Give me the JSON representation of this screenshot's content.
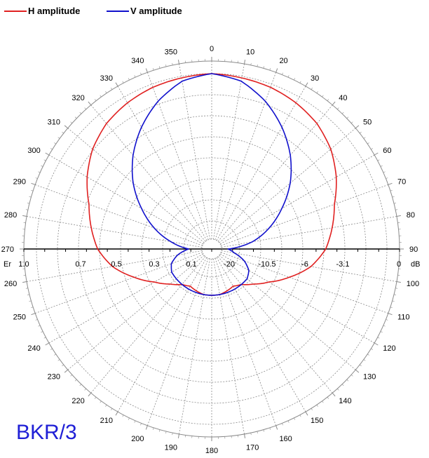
{
  "legend": {
    "h_label": "H amplitude",
    "v_label": "V amplitude"
  },
  "watermark": "BKR/3",
  "colors": {
    "h": "#e02020",
    "v": "#1010cc",
    "grid": "#8a8a8a",
    "axis": "#000000"
  },
  "chart_data": {
    "type": "line",
    "projection": "polar",
    "angular_unit": "degrees",
    "angle_ticks": [
      0,
      10,
      20,
      30,
      40,
      50,
      60,
      70,
      80,
      90,
      100,
      110,
      120,
      130,
      140,
      150,
      160,
      170,
      180,
      190,
      200,
      210,
      220,
      230,
      240,
      250,
      260,
      270,
      280,
      290,
      300,
      310,
      320,
      330,
      340,
      350
    ],
    "left_scale_label": "Er",
    "left_scale_ticks": [
      "1.0",
      "0.7",
      "0.5",
      "0.3",
      "0.1"
    ],
    "left_scale_values": [
      1.0,
      0.7,
      0.5,
      0.3,
      0.1
    ],
    "right_scale_label": "dB",
    "right_scale_ticks": [
      "-20",
      "-10.5",
      "-6",
      "-3.1",
      "0"
    ],
    "right_scale_values": [
      -20,
      -10.5,
      -6,
      -3.1,
      0
    ],
    "radial_range": [
      0,
      1
    ],
    "series": [
      {
        "name": "H amplitude",
        "angles": [
          0,
          10,
          20,
          30,
          40,
          50,
          60,
          70,
          80,
          90,
          100,
          110,
          120,
          130,
          140,
          150,
          160,
          170,
          180,
          190,
          200,
          210,
          220,
          230,
          240,
          250,
          260,
          270,
          280,
          290,
          300,
          310,
          320,
          330,
          340,
          350
        ],
        "values": [
          1.0,
          0.99,
          0.98,
          0.96,
          0.93,
          0.88,
          0.81,
          0.73,
          0.68,
          0.63,
          0.55,
          0.44,
          0.34,
          0.27,
          0.22,
          0.2,
          0.21,
          0.22,
          0.22,
          0.22,
          0.21,
          0.2,
          0.22,
          0.27,
          0.34,
          0.44,
          0.55,
          0.63,
          0.68,
          0.73,
          0.81,
          0.88,
          0.93,
          0.96,
          0.98,
          0.99
        ]
      },
      {
        "name": "V amplitude",
        "angles": [
          0,
          10,
          20,
          30,
          40,
          50,
          60,
          70,
          80,
          90,
          100,
          110,
          120,
          130,
          140,
          150,
          160,
          170,
          180,
          190,
          200,
          210,
          220,
          230,
          240,
          250,
          260,
          270,
          280,
          290,
          300,
          310,
          320,
          330,
          340,
          350
        ],
        "values": [
          1.0,
          0.97,
          0.89,
          0.79,
          0.68,
          0.56,
          0.43,
          0.31,
          0.19,
          0.04,
          0.08,
          0.15,
          0.2,
          0.22,
          0.22,
          0.22,
          0.22,
          0.22,
          0.22,
          0.22,
          0.22,
          0.22,
          0.22,
          0.22,
          0.22,
          0.2,
          0.15,
          0.08,
          0.19,
          0.31,
          0.43,
          0.56,
          0.68,
          0.79,
          0.89,
          0.97
        ]
      }
    ]
  }
}
